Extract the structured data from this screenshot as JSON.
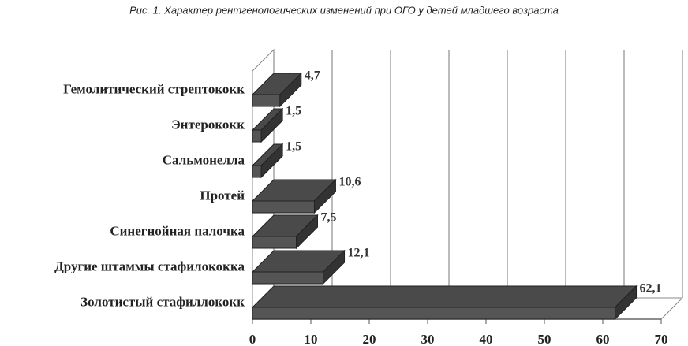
{
  "chart_data": {
    "type": "bar3d_horizontal",
    "title": "Рис. 1. Характер рентгенологических изменений при ОГО у детей младшего возраста",
    "categories": [
      "Гемолитический стрептококк",
      "Энтерококк",
      "Сальмонелла",
      "Протей",
      "Синегнойная палочка",
      "Другие штаммы стафилококка",
      "Золотистый стафиллококк"
    ],
    "values": [
      4.7,
      1.5,
      1.5,
      10.6,
      7.5,
      12.1,
      62.1
    ],
    "value_labels": [
      "4,7",
      "1,5",
      "1,5",
      "10,6",
      "7,5",
      "12,1",
      "62,1"
    ],
    "color": "#555555",
    "xlim": [
      0,
      70
    ],
    "xticks": [
      0,
      10,
      20,
      30,
      40,
      50,
      60,
      70
    ],
    "grid": true
  }
}
